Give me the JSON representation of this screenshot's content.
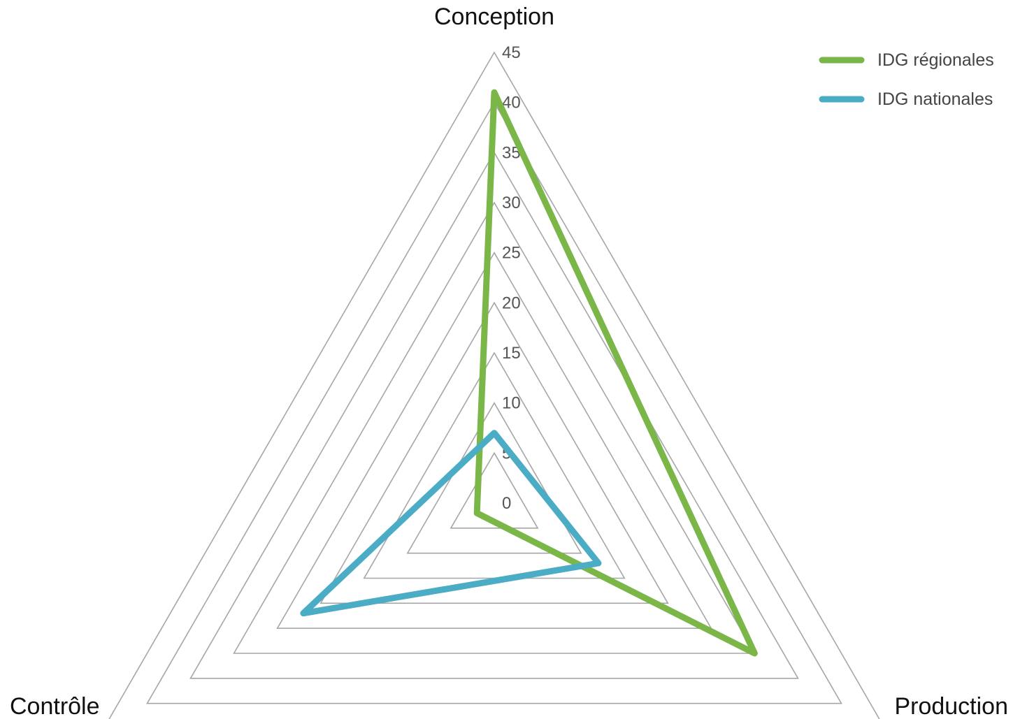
{
  "chart_data": {
    "type": "radar",
    "axes": [
      "Conception",
      "Production",
      "Contrôle"
    ],
    "rlim": [
      0,
      45
    ],
    "ticks": [
      0,
      5,
      10,
      15,
      20,
      25,
      30,
      35,
      40,
      45
    ],
    "tick_labels": [
      "0",
      "5",
      "10",
      "15",
      "20",
      "25",
      "30",
      "35",
      "40",
      "45"
    ],
    "grid": true,
    "legend_position": "top-right",
    "series": [
      {
        "name": "IDG régionales",
        "color": "#7ab648",
        "values": [
          41,
          30,
          2
        ]
      },
      {
        "name": "IDG nationales",
        "color": "#4bacc6",
        "values": [
          7,
          12,
          22
        ]
      }
    ]
  }
}
